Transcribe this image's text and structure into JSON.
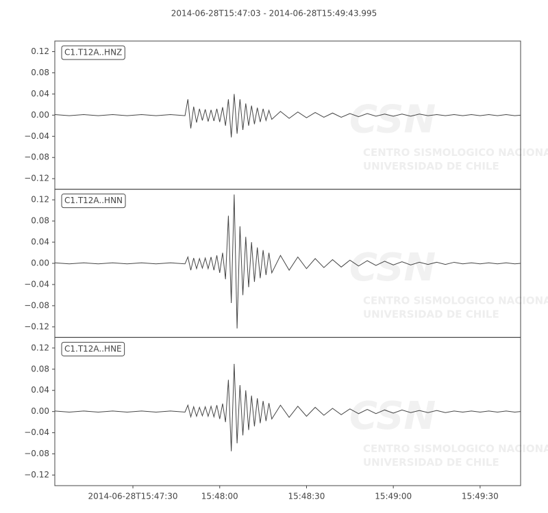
{
  "chart_data": [
    {
      "type": "line",
      "title": "2014-06-28T15:47:03  -  2014-06-28T15:49:43.995",
      "label": "C1.T12A..HNZ",
      "color": "#444444",
      "watermark": [
        "CSN",
        "CENTRO SISMOLOGICO NACIONAL",
        "UNIVERSIDAD DE CHILE"
      ],
      "x": [
        "2014-06-28T15:47:03",
        "2014-06-28T15:47:08",
        "2014-06-28T15:47:13",
        "2014-06-28T15:47:18",
        "2014-06-28T15:47:23",
        "2014-06-28T15:47:28",
        "2014-06-28T15:47:33",
        "2014-06-28T15:47:38",
        "2014-06-28T15:47:43",
        "2014-06-28T15:47:48",
        "2014-06-28T15:47:49",
        "2014-06-28T15:47:50",
        "2014-06-28T15:47:51",
        "2014-06-28T15:47:52",
        "2014-06-28T15:47:53",
        "2014-06-28T15:47:54",
        "2014-06-28T15:47:55",
        "2014-06-28T15:47:56",
        "2014-06-28T15:47:57",
        "2014-06-28T15:47:58",
        "2014-06-28T15:47:59",
        "2014-06-28T15:48:00",
        "2014-06-28T15:48:01",
        "2014-06-28T15:48:02",
        "2014-06-28T15:48:03",
        "2014-06-28T15:48:04",
        "2014-06-28T15:48:05",
        "2014-06-28T15:48:06",
        "2014-06-28T15:48:07",
        "2014-06-28T15:48:08",
        "2014-06-28T15:48:09",
        "2014-06-28T15:48:10",
        "2014-06-28T15:48:11",
        "2014-06-28T15:48:12",
        "2014-06-28T15:48:13",
        "2014-06-28T15:48:14",
        "2014-06-28T15:48:15",
        "2014-06-28T15:48:16",
        "2014-06-28T15:48:17",
        "2014-06-28T15:48:18",
        "2014-06-28T15:48:21",
        "2014-06-28T15:48:24",
        "2014-06-28T15:48:27",
        "2014-06-28T15:48:30",
        "2014-06-28T15:48:33",
        "2014-06-28T15:48:36",
        "2014-06-28T15:48:39",
        "2014-06-28T15:48:42",
        "2014-06-28T15:48:45",
        "2014-06-28T15:48:48",
        "2014-06-28T15:48:51",
        "2014-06-28T15:48:54",
        "2014-06-28T15:48:57",
        "2014-06-28T15:49:00",
        "2014-06-28T15:49:03",
        "2014-06-28T15:49:06",
        "2014-06-28T15:49:09",
        "2014-06-28T15:49:12",
        "2014-06-28T15:49:15",
        "2014-06-28T15:49:18",
        "2014-06-28T15:49:21",
        "2014-06-28T15:49:24",
        "2014-06-28T15:49:27",
        "2014-06-28T15:49:30",
        "2014-06-28T15:49:33",
        "2014-06-28T15:49:36",
        "2014-06-28T15:49:39",
        "2014-06-28T15:49:42",
        "2014-06-28T15:49:43.995"
      ],
      "values": [
        0.001,
        -0.001,
        0.001,
        -0.001,
        0.001,
        -0.001,
        0.001,
        -0.001,
        0.001,
        -0.001,
        0.03,
        -0.025,
        0.016,
        -0.014,
        0.012,
        -0.01,
        0.011,
        -0.012,
        0.01,
        -0.011,
        0.012,
        -0.013,
        0.015,
        -0.02,
        0.03,
        -0.042,
        0.04,
        -0.035,
        0.03,
        -0.028,
        0.022,
        -0.02,
        0.018,
        -0.017,
        0.014,
        -0.013,
        0.012,
        -0.01,
        0.009,
        -0.008,
        0.007,
        -0.006,
        0.006,
        -0.005,
        0.005,
        -0.004,
        0.004,
        -0.004,
        0.003,
        -0.003,
        0.003,
        -0.002,
        0.002,
        -0.002,
        0.002,
        -0.002,
        0.002,
        -0.001,
        0.001,
        -0.001,
        0.001,
        -0.001,
        0.001,
        -0.001,
        0.001,
        -0.001,
        0.001,
        -0.001,
        0
      ],
      "xlim": [
        "2014-06-28T15:47:03",
        "2014-06-28T15:49:43.995"
      ],
      "ylim": [
        -0.14,
        0.14
      ],
      "yticks": [
        0.12,
        0.08,
        0.04,
        {
          "value": 0,
          "label": "0.00"
        },
        {
          "value": -0.04,
          "label": "−0.04"
        },
        {
          "value": -0.08,
          "label": "−0.08"
        },
        {
          "value": -0.12,
          "label": "−0.12"
        }
      ]
    },
    {
      "type": "line",
      "label": "C1.T12A..HNN",
      "color": "#444444",
      "watermark": [
        "CSN",
        "CENTRO SISMOLOGICO NACIONAL",
        "UNIVERSIDAD DE CHILE"
      ],
      "x": [
        "2014-06-28T15:47:03",
        "2014-06-28T15:47:08",
        "2014-06-28T15:47:13",
        "2014-06-28T15:47:18",
        "2014-06-28T15:47:23",
        "2014-06-28T15:47:28",
        "2014-06-28T15:47:33",
        "2014-06-28T15:47:38",
        "2014-06-28T15:47:43",
        "2014-06-28T15:47:48",
        "2014-06-28T15:47:49",
        "2014-06-28T15:47:50",
        "2014-06-28T15:47:51",
        "2014-06-28T15:47:52",
        "2014-06-28T15:47:53",
        "2014-06-28T15:47:54",
        "2014-06-28T15:47:55",
        "2014-06-28T15:47:56",
        "2014-06-28T15:47:57",
        "2014-06-28T15:47:58",
        "2014-06-28T15:47:59",
        "2014-06-28T15:48:00",
        "2014-06-28T15:48:01",
        "2014-06-28T15:48:02",
        "2014-06-28T15:48:03",
        "2014-06-28T15:48:04",
        "2014-06-28T15:48:05",
        "2014-06-28T15:48:06",
        "2014-06-28T15:48:07",
        "2014-06-28T15:48:08",
        "2014-06-28T15:48:09",
        "2014-06-28T15:48:10",
        "2014-06-28T15:48:11",
        "2014-06-28T15:48:12",
        "2014-06-28T15:48:13",
        "2014-06-28T15:48:14",
        "2014-06-28T15:48:15",
        "2014-06-28T15:48:16",
        "2014-06-28T15:48:17",
        "2014-06-28T15:48:18",
        "2014-06-28T15:48:21",
        "2014-06-28T15:48:24",
        "2014-06-28T15:48:27",
        "2014-06-28T15:48:30",
        "2014-06-28T15:48:33",
        "2014-06-28T15:48:36",
        "2014-06-28T15:48:39",
        "2014-06-28T15:48:42",
        "2014-06-28T15:48:45",
        "2014-06-28T15:48:48",
        "2014-06-28T15:48:51",
        "2014-06-28T15:48:54",
        "2014-06-28T15:48:57",
        "2014-06-28T15:49:00",
        "2014-06-28T15:49:03",
        "2014-06-28T15:49:06",
        "2014-06-28T15:49:09",
        "2014-06-28T15:49:12",
        "2014-06-28T15:49:15",
        "2014-06-28T15:49:18",
        "2014-06-28T15:49:21",
        "2014-06-28T15:49:24",
        "2014-06-28T15:49:27",
        "2014-06-28T15:49:30",
        "2014-06-28T15:49:33",
        "2014-06-28T15:49:36",
        "2014-06-28T15:49:39",
        "2014-06-28T15:49:42",
        "2014-06-28T15:49:43.995"
      ],
      "values": [
        0.001,
        -0.001,
        0.001,
        -0.001,
        0.001,
        -0.001,
        0.001,
        -0.001,
        0.001,
        -0.001,
        0.012,
        -0.013,
        0.01,
        -0.01,
        0.009,
        -0.009,
        0.01,
        -0.01,
        0.012,
        -0.013,
        0.015,
        -0.018,
        0.02,
        -0.03,
        0.09,
        -0.075,
        0.13,
        -0.123,
        0.07,
        -0.06,
        0.05,
        -0.045,
        0.04,
        -0.035,
        0.03,
        -0.028,
        0.025,
        -0.022,
        0.02,
        -0.018,
        0.015,
        -0.013,
        0.012,
        -0.01,
        0.009,
        -0.008,
        0.007,
        -0.007,
        0.006,
        -0.005,
        0.005,
        -0.004,
        0.004,
        -0.003,
        0.003,
        -0.003,
        0.002,
        -0.002,
        0.002,
        -0.002,
        0.002,
        -0.001,
        0.001,
        -0.001,
        0.001,
        -0.001,
        0.001,
        -0.001,
        0
      ],
      "xlim": [
        "2014-06-28T15:47:03",
        "2014-06-28T15:49:43.995"
      ],
      "ylim": [
        -0.14,
        0.14
      ],
      "yticks": [
        0.12,
        0.08,
        0.04,
        {
          "value": 0,
          "label": "0.00"
        },
        {
          "value": -0.04,
          "label": "−0.04"
        },
        {
          "value": -0.08,
          "label": "−0.08"
        },
        {
          "value": -0.12,
          "label": "−0.12"
        }
      ]
    },
    {
      "type": "line",
      "label": "C1.T12A..HNE",
      "color": "#444444",
      "watermark": [
        "CSN",
        "CENTRO SISMOLOGICO NACIONAL",
        "UNIVERSIDAD DE CHILE"
      ],
      "x": [
        "2014-06-28T15:47:03",
        "2014-06-28T15:47:08",
        "2014-06-28T15:47:13",
        "2014-06-28T15:47:18",
        "2014-06-28T15:47:23",
        "2014-06-28T15:47:28",
        "2014-06-28T15:47:33",
        "2014-06-28T15:47:38",
        "2014-06-28T15:47:43",
        "2014-06-28T15:47:48",
        "2014-06-28T15:47:49",
        "2014-06-28T15:47:50",
        "2014-06-28T15:47:51",
        "2014-06-28T15:47:52",
        "2014-06-28T15:47:53",
        "2014-06-28T15:47:54",
        "2014-06-28T15:47:55",
        "2014-06-28T15:47:56",
        "2014-06-28T15:47:57",
        "2014-06-28T15:47:58",
        "2014-06-28T15:47:59",
        "2014-06-28T15:48:00",
        "2014-06-28T15:48:01",
        "2014-06-28T15:48:02",
        "2014-06-28T15:48:03",
        "2014-06-28T15:48:04",
        "2014-06-28T15:48:05",
        "2014-06-28T15:48:06",
        "2014-06-28T15:48:07",
        "2014-06-28T15:48:08",
        "2014-06-28T15:48:09",
        "2014-06-28T15:48:10",
        "2014-06-28T15:48:11",
        "2014-06-28T15:48:12",
        "2014-06-28T15:48:13",
        "2014-06-28T15:48:14",
        "2014-06-28T15:48:15",
        "2014-06-28T15:48:16",
        "2014-06-28T15:48:17",
        "2014-06-28T15:48:18",
        "2014-06-28T15:48:21",
        "2014-06-28T15:48:24",
        "2014-06-28T15:48:27",
        "2014-06-28T15:48:30",
        "2014-06-28T15:48:33",
        "2014-06-28T15:48:36",
        "2014-06-28T15:48:39",
        "2014-06-28T15:48:42",
        "2014-06-28T15:48:45",
        "2014-06-28T15:48:48",
        "2014-06-28T15:48:51",
        "2014-06-28T15:48:54",
        "2014-06-28T15:48:57",
        "2014-06-28T15:49:00",
        "2014-06-28T15:49:03",
        "2014-06-28T15:49:06",
        "2014-06-28T15:49:09",
        "2014-06-28T15:49:12",
        "2014-06-28T15:49:15",
        "2014-06-28T15:49:18",
        "2014-06-28T15:49:21",
        "2014-06-28T15:49:24",
        "2014-06-28T15:49:27",
        "2014-06-28T15:49:30",
        "2014-06-28T15:49:33",
        "2014-06-28T15:49:36",
        "2014-06-28T15:49:39",
        "2014-06-28T15:49:42",
        "2014-06-28T15:49:43.995"
      ],
      "values": [
        0.001,
        -0.001,
        0.001,
        -0.001,
        0.001,
        -0.001,
        0.001,
        -0.001,
        0.001,
        -0.001,
        0.012,
        -0.01,
        0.009,
        -0.009,
        0.008,
        -0.008,
        0.009,
        -0.009,
        0.01,
        -0.01,
        0.012,
        -0.014,
        0.015,
        -0.02,
        0.06,
        -0.075,
        0.09,
        -0.06,
        0.05,
        -0.045,
        0.04,
        -0.035,
        0.03,
        -0.028,
        0.025,
        -0.022,
        0.02,
        -0.018,
        0.016,
        -0.014,
        0.012,
        -0.011,
        0.01,
        -0.009,
        0.008,
        -0.007,
        0.006,
        -0.006,
        0.005,
        -0.004,
        0.004,
        -0.004,
        0.003,
        -0.003,
        0.003,
        -0.002,
        0.002,
        -0.002,
        0.002,
        -0.002,
        0.001,
        -0.001,
        0.001,
        -0.001,
        0.001,
        -0.001,
        0.001,
        -0.001,
        0
      ],
      "xlim": [
        "2014-06-28T15:47:03",
        "2014-06-28T15:49:43.995"
      ],
      "ylim": [
        -0.14,
        0.14
      ],
      "yticks": [
        0.12,
        0.08,
        0.04,
        {
          "value": 0,
          "label": "0.00"
        },
        {
          "value": -0.04,
          "label": "−0.04"
        },
        {
          "value": -0.08,
          "label": "−0.08"
        },
        {
          "value": -0.12,
          "label": "−0.12"
        }
      ],
      "xticks": [
        {
          "value": "2014-06-28T15:47:30",
          "label": "2014-06-28T15:47:30"
        },
        {
          "value": "2014-06-28T15:48:00",
          "label": "15:48:00"
        },
        {
          "value": "2014-06-28T15:48:30",
          "label": "15:48:30"
        },
        {
          "value": "2014-06-28T15:49:00",
          "label": "15:49:00"
        },
        {
          "value": "2014-06-28T15:49:30",
          "label": "15:49:30"
        }
      ]
    }
  ]
}
